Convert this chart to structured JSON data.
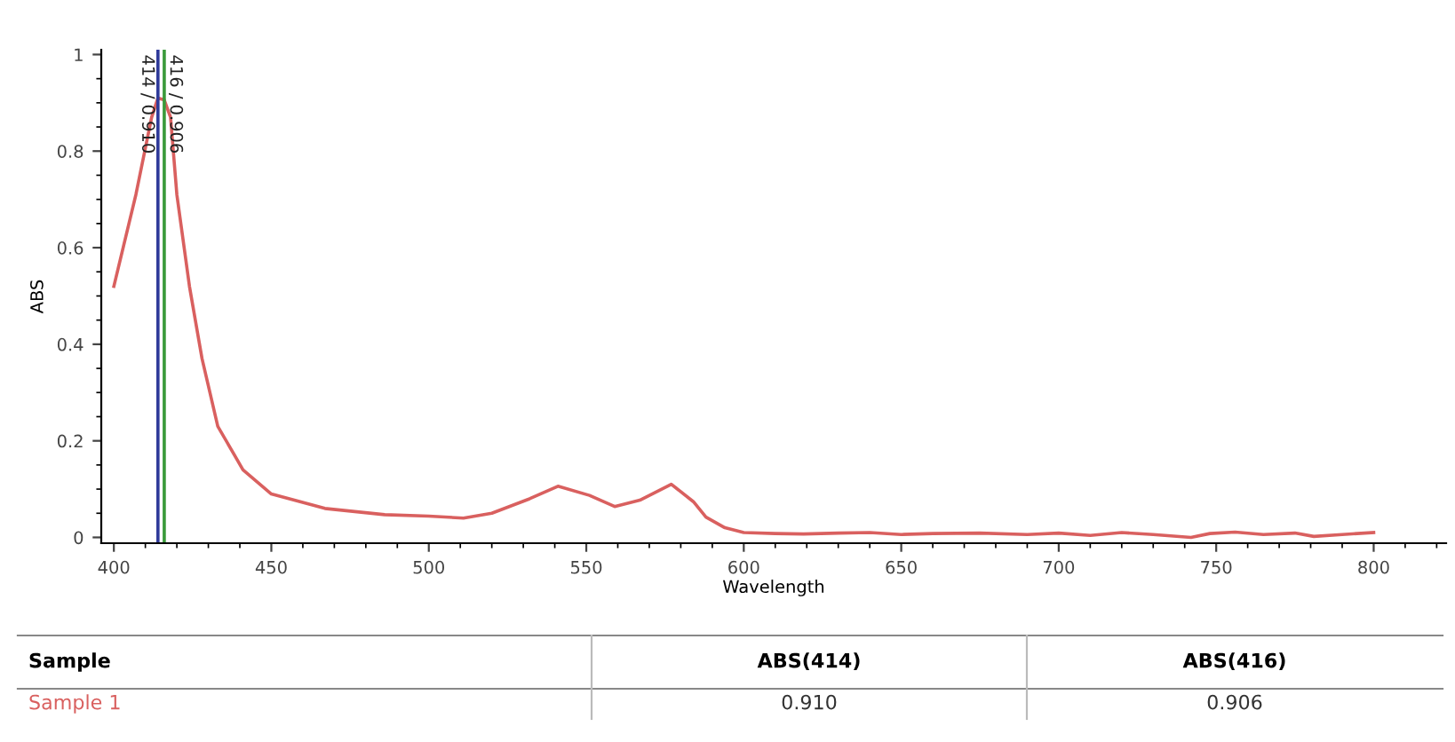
{
  "chart_data": {
    "type": "line",
    "xlabel": "Wavelength",
    "ylabel": "ABS",
    "xlim": [
      396,
      823
    ],
    "ylim": [
      -0.012,
      1.01
    ],
    "xticks": [
      400,
      450,
      500,
      550,
      600,
      650,
      700,
      750,
      800
    ],
    "yticks": [
      0,
      0.2,
      0.4,
      0.6,
      0.8,
      1
    ],
    "grid": false,
    "legend": false,
    "line_style": "solid",
    "marker": "none",
    "series": [
      {
        "name": "Sample 1",
        "color": "#d9605f",
        "x": [
          400,
          407,
          412,
          414,
          416,
          418,
          420,
          424,
          428,
          433,
          441,
          450,
          467,
          486,
          500,
          511,
          520,
          532,
          541,
          551,
          559,
          567,
          577,
          584,
          588,
          594,
          600,
          610,
          619,
          630,
          640,
          650,
          660,
          675,
          690,
          700,
          710,
          720,
          730,
          742,
          748,
          756,
          765,
          775,
          781,
          790,
          800
        ],
        "values": [
          0.52,
          0.71,
          0.87,
          0.91,
          0.906,
          0.87,
          0.71,
          0.52,
          0.37,
          0.23,
          0.14,
          0.09,
          0.06,
          0.047,
          0.044,
          0.04,
          0.05,
          0.08,
          0.106,
          0.087,
          0.064,
          0.077,
          0.11,
          0.074,
          0.042,
          0.02,
          0.01,
          0.008,
          0.007,
          0.009,
          0.01,
          0.006,
          0.008,
          0.009,
          0.006,
          0.009,
          0.004,
          0.01,
          0.006,
          0.0,
          0.008,
          0.011,
          0.006,
          0.009,
          0.002,
          0.006,
          0.01
        ]
      }
    ],
    "ref_lines": [
      {
        "axis": "x",
        "value": 414,
        "label": "414 / 0.910",
        "color": "#2f3a9a"
      },
      {
        "axis": "x",
        "value": 416,
        "label": "416 / 0.906",
        "color": "#3a9a3a"
      }
    ],
    "annotations": [
      "Sample",
      "ABS(414)",
      "ABS(416)",
      "0.910",
      "0.906"
    ]
  }
}
